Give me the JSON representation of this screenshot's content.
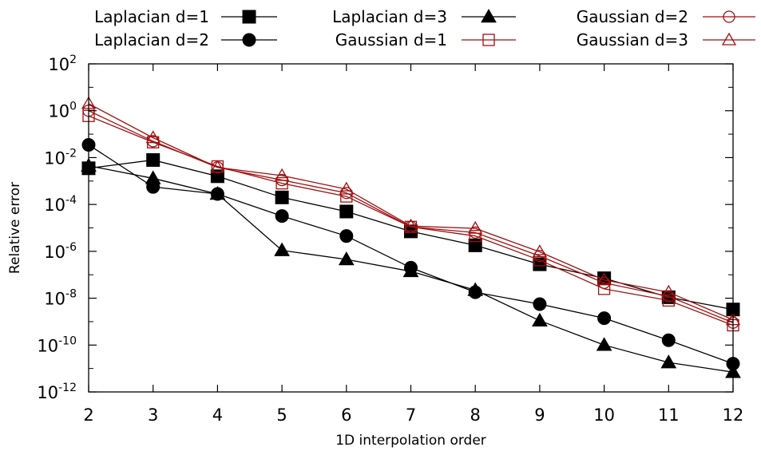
{
  "chart_data": {
    "type": "line",
    "xlabel": "1D interpolation order",
    "ylabel": "Relative error",
    "y_scale": "log",
    "xlim": [
      2,
      12
    ],
    "ylim": [
      1e-12,
      100
    ],
    "grid": false,
    "legend_placement": "top, above plot, 3 columns",
    "x_tick_labels": [
      "2",
      "3",
      "4",
      "5",
      "6",
      "7",
      "8",
      "9",
      "10",
      "11",
      "12"
    ],
    "y_ticks": [
      {
        "base": "10",
        "exp": "-12",
        "value": 1e-12
      },
      {
        "base": "10",
        "exp": "-10",
        "value": 1e-10
      },
      {
        "base": "10",
        "exp": "-8",
        "value": 1e-08
      },
      {
        "base": "10",
        "exp": "-6",
        "value": 1e-06
      },
      {
        "base": "10",
        "exp": "-4",
        "value": 0.0001
      },
      {
        "base": "10",
        "exp": "-2",
        "value": 0.01
      },
      {
        "base": "10",
        "exp": "0",
        "value": 1
      },
      {
        "base": "10",
        "exp": "2",
        "value": 100
      }
    ],
    "x": [
      2,
      3,
      4,
      5,
      6,
      7,
      8,
      9,
      10,
      11,
      12
    ],
    "series": [
      {
        "name": "Laplacian d=1",
        "color": "#000000",
        "marker": "square-filled",
        "values": [
          0.0035,
          0.0079,
          0.0016,
          0.0002,
          5e-05,
          7.1e-06,
          1.8e-06,
          2.8e-07,
          7.1e-08,
          1.1e-08,
          3.3e-09
        ]
      },
      {
        "name": "Laplacian d=2",
        "color": "#000000",
        "marker": "circle-filled",
        "values": [
          0.035,
          0.00056,
          0.00028,
          3.2e-05,
          4.5e-06,
          2e-07,
          1.8e-08,
          5.6e-09,
          1.4e-09,
          1.6e-10,
          1.6e-11
        ]
      },
      {
        "name": "Laplacian d=3",
        "color": "#000000",
        "marker": "triangle-filled",
        "values": [
          0.0045,
          0.0013,
          0.00028,
          1.1e-06,
          4.5e-07,
          1.4e-07,
          2.2e-08,
          1.1e-09,
          1e-10,
          1.8e-11,
          7e-12
        ]
      },
      {
        "name": "Gaussian d=1",
        "color": "#a01010",
        "marker": "square-open",
        "values": [
          0.6,
          0.045,
          0.0042,
          0.0008,
          0.00022,
          1.1e-05,
          4.5e-06,
          4.2e-07,
          2.5e-08,
          8e-09,
          7e-10
        ]
      },
      {
        "name": "Gaussian d=2",
        "color": "#a01010",
        "marker": "circle-open",
        "values": [
          1.0,
          0.05,
          0.0038,
          0.0011,
          0.00031,
          1.1e-05,
          6.3e-06,
          6.3e-07,
          4.5e-08,
          1.2e-08,
          9e-10
        ]
      },
      {
        "name": "Gaussian d=3",
        "color": "#a01010",
        "marker": "triangle-open",
        "values": [
          2.0,
          0.07,
          0.0038,
          0.0017,
          0.00045,
          1.2e-05,
          9.5e-06,
          9.5e-07,
          6e-08,
          1.8e-08,
          1.2e-09
        ]
      }
    ]
  }
}
